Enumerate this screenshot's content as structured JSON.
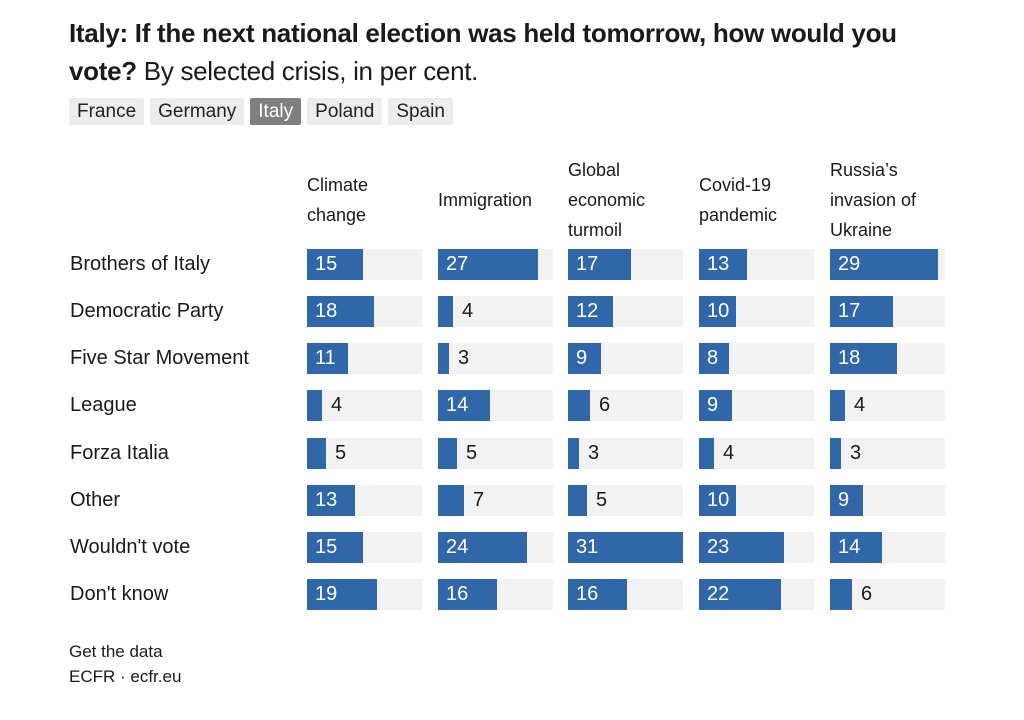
{
  "title": {
    "bold": "Italy: If the next national election was held tomorrow, how would you vote?",
    "subtitle": "By selected crisis, in per cent."
  },
  "tabs": [
    {
      "label": "France",
      "active": false
    },
    {
      "label": "Germany",
      "active": false
    },
    {
      "label": "Italy",
      "active": true
    },
    {
      "label": "Poland",
      "active": false
    },
    {
      "label": "Spain",
      "active": false
    }
  ],
  "colors": {
    "bar": "#2f67a8",
    "cell_background": "#f2f2f2",
    "active_tab": "#7f7f7f",
    "inactive_tab": "#ececec"
  },
  "chart_data": {
    "type": "bar",
    "title": "Italy: If the next national election was held tomorrow, how would you vote?",
    "subtitle": "By selected crisis, in per cent.",
    "categories": [
      "Brothers of Italy",
      "Democratic Party",
      "Five Star Movement",
      "League",
      "Forza Italia",
      "Other",
      "Wouldn't vote",
      "Don't know"
    ],
    "series": [
      {
        "name": "Climate change",
        "values": [
          15,
          18,
          11,
          4,
          5,
          13,
          15,
          19
        ]
      },
      {
        "name": "Immigration",
        "values": [
          27,
          4,
          3,
          14,
          5,
          7,
          24,
          16
        ]
      },
      {
        "name": "Global economic turmoil",
        "values": [
          17,
          12,
          9,
          6,
          3,
          5,
          31,
          16
        ]
      },
      {
        "name": "Covid-19 pandemic",
        "values": [
          13,
          10,
          8,
          9,
          4,
          10,
          23,
          22
        ]
      },
      {
        "name": "Russia’s invasion of Ukraine",
        "values": [
          29,
          17,
          18,
          4,
          3,
          9,
          14,
          6
        ]
      }
    ],
    "xlim": [
      0,
      31
    ]
  },
  "footer": {
    "get_data": "Get the data",
    "source": "ECFR · ecfr.eu"
  }
}
